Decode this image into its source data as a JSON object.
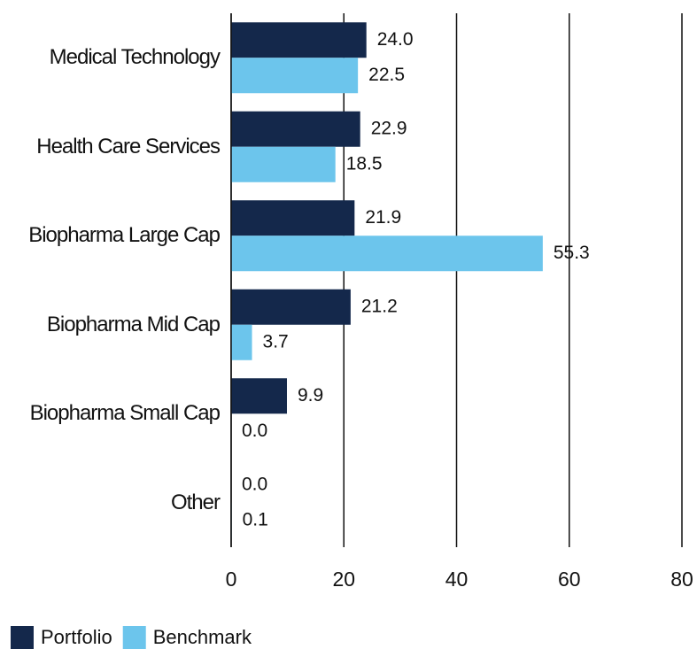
{
  "chart_data": {
    "type": "bar",
    "orientation": "horizontal",
    "categories": [
      "Medical Technology",
      "Health Care Services",
      "Biopharma Large Cap",
      "Biopharma Mid Cap",
      "Biopharma Small Cap",
      "Other"
    ],
    "series": [
      {
        "name": "Portfolio",
        "color": "#14284b",
        "values": [
          24,
          22.9,
          21.9,
          21.2,
          9.9,
          0
        ],
        "value_labels": [
          "24.0",
          "22.9",
          "21.9",
          "21.2",
          "9.9",
          "0.0"
        ]
      },
      {
        "name": "Benchmark",
        "color": "#6cc5ec",
        "values": [
          22.5,
          18.5,
          55.3,
          3.7,
          0,
          0.1
        ],
        "value_labels": [
          "22.5",
          "18.5",
          "55.3",
          "3.7",
          "0.0",
          "0.1"
        ]
      }
    ],
    "xlim": [
      0,
      80
    ],
    "xticks": [
      0,
      20,
      40,
      60,
      80
    ],
    "grid": true,
    "legend": "bottom-left"
  }
}
